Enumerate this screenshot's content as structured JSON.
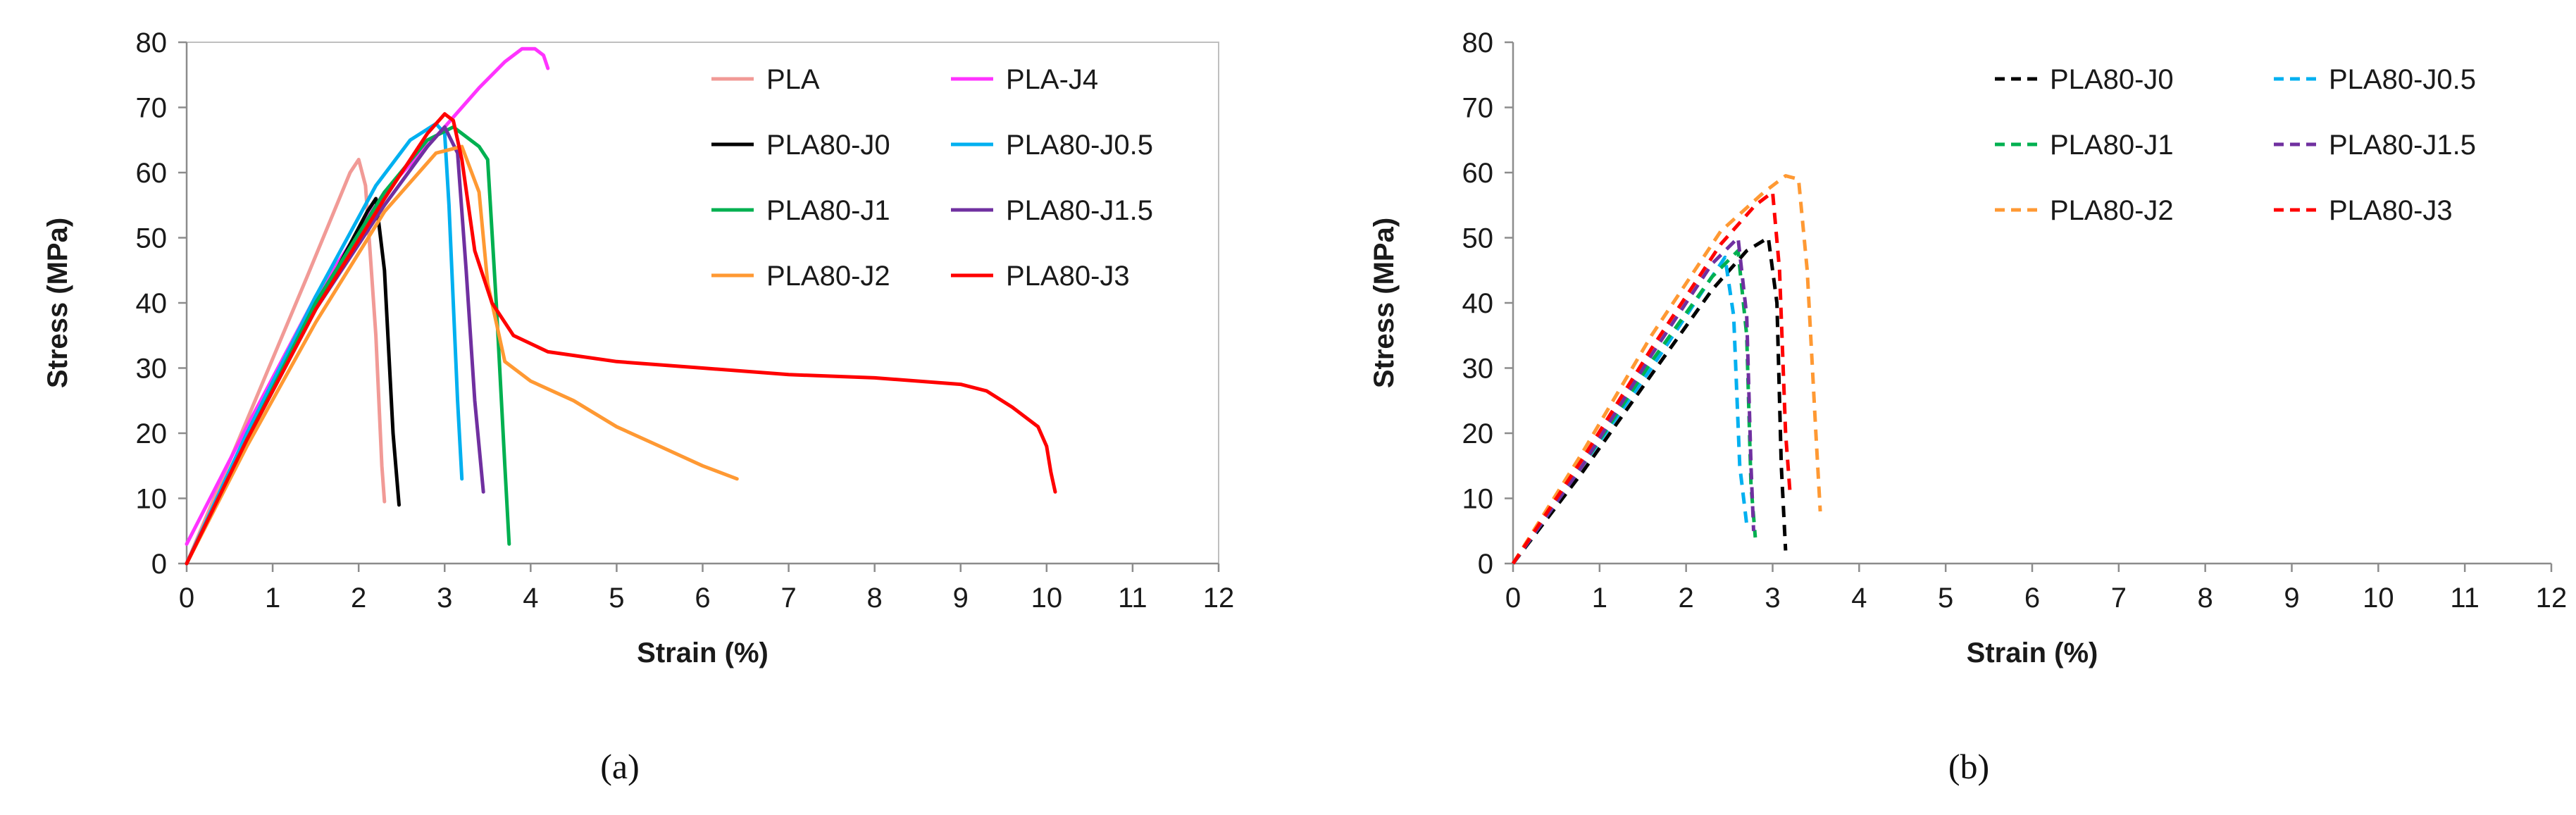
{
  "chart_data": [
    {
      "type": "line",
      "panel": "(a)",
      "xlabel": "Strain (%)",
      "ylabel": "Stress (MPa)",
      "xlim": [
        0,
        12
      ],
      "ylim": [
        0,
        80
      ],
      "xticks": [
        "0",
        "1",
        "2",
        "3",
        "4",
        "5",
        "6",
        "7",
        "8",
        "9",
        "10",
        "11",
        "12"
      ],
      "yticks": [
        "0",
        "10",
        "20",
        "30",
        "40",
        "50",
        "60",
        "70",
        "80"
      ],
      "legend_position": "top-right",
      "series": [
        {
          "name": "PLA",
          "color": "#f19a96",
          "dash": "solid",
          "x": [
            0.0,
            0.7,
            1.4,
            1.9,
            2.0,
            2.08,
            2.2,
            2.27,
            2.3
          ],
          "y": [
            0.0,
            22.0,
            44.0,
            60.0,
            62.0,
            58.0,
            35.0,
            15.0,
            9.5
          ]
        },
        {
          "name": "PLA-J4",
          "color": "#ff33ff",
          "dash": "solid",
          "x": [
            0.0,
            0.7,
            1.5,
            2.3,
            3.0,
            3.4,
            3.7,
            3.9,
            4.05,
            4.15,
            4.2
          ],
          "y": [
            3.0,
            21.0,
            41.0,
            57.0,
            67.0,
            73.0,
            77.0,
            79.0,
            79.0,
            78.0,
            76.0
          ]
        },
        {
          "name": "PLA80-J0",
          "color": "#000000",
          "dash": "solid",
          "x": [
            0.0,
            0.7,
            1.5,
            2.1,
            2.2,
            2.3,
            2.4,
            2.47
          ],
          "y": [
            0.0,
            19.0,
            39.0,
            54.0,
            56.0,
            45.0,
            20.0,
            9.0
          ]
        },
        {
          "name": "PLA80-J0.5",
          "color": "#00b0f0",
          "dash": "solid",
          "x": [
            0.0,
            0.7,
            1.5,
            2.2,
            2.6,
            2.9,
            3.0,
            3.05,
            3.1,
            3.15,
            3.2
          ],
          "y": [
            0.0,
            20.0,
            41.0,
            58.0,
            65.0,
            67.5,
            66.0,
            55.0,
            40.0,
            25.0,
            13.0
          ]
        },
        {
          "name": "PLA80-J1",
          "color": "#00b050",
          "dash": "solid",
          "x": [
            0.0,
            0.7,
            1.5,
            2.3,
            2.8,
            3.1,
            3.4,
            3.5,
            3.6,
            3.7,
            3.75
          ],
          "y": [
            0.0,
            19.0,
            40.0,
            57.0,
            65.0,
            67.0,
            64.0,
            62.0,
            40.0,
            15.0,
            3.0
          ]
        },
        {
          "name": "PLA80-J1.5",
          "color": "#7030a0",
          "dash": "solid",
          "x": [
            0.0,
            0.7,
            1.5,
            2.3,
            2.8,
            3.0,
            3.15,
            3.25,
            3.35,
            3.45
          ],
          "y": [
            0.0,
            19.0,
            39.0,
            55.0,
            64.0,
            67.0,
            63.0,
            45.0,
            25.0,
            11.0
          ]
        },
        {
          "name": "PLA80-J2",
          "color": "#ff9933",
          "dash": "solid",
          "x": [
            0.0,
            0.7,
            1.5,
            2.3,
            2.9,
            3.2,
            3.4,
            3.5,
            3.7,
            4.0,
            4.5,
            5.0,
            5.5,
            6.0,
            6.4
          ],
          "y": [
            0.0,
            18.0,
            37.0,
            54.0,
            63.0,
            64.0,
            57.0,
            43.0,
            31.0,
            28.0,
            25.0,
            21.0,
            18.0,
            15.0,
            13.0
          ]
        },
        {
          "name": "PLA80-J3",
          "color": "#ff0000",
          "dash": "solid",
          "x": [
            0.0,
            0.7,
            1.5,
            2.3,
            2.8,
            3.0,
            3.1,
            3.2,
            3.35,
            3.55,
            3.8,
            4.2,
            5.0,
            6.0,
            7.0,
            8.0,
            9.0,
            9.3,
            9.6,
            9.9,
            10.0,
            10.05,
            10.1
          ],
          "y": [
            0.0,
            19.0,
            39.0,
            56.0,
            66.0,
            69.0,
            68.0,
            62.0,
            48.0,
            40.0,
            35.0,
            32.5,
            31.0,
            30.0,
            29.0,
            28.5,
            27.5,
            26.5,
            24.0,
            21.0,
            18.0,
            14.0,
            11.0
          ]
        }
      ]
    },
    {
      "type": "line",
      "panel": "(b)",
      "xlabel": "Strain (%)",
      "ylabel": "Stress (MPa)",
      "xlim": [
        0,
        12
      ],
      "ylim": [
        0,
        80
      ],
      "xticks": [
        "0",
        "1",
        "2",
        "3",
        "4",
        "5",
        "6",
        "7",
        "8",
        "9",
        "10",
        "11",
        "12"
      ],
      "yticks": [
        "0",
        "10",
        "20",
        "30",
        "40",
        "50",
        "60",
        "70",
        "80"
      ],
      "legend_position": "top-right",
      "series": [
        {
          "name": "PLA80-J0",
          "color": "#000000",
          "dash": "dashed",
          "x": [
            0.0,
            0.8,
            1.6,
            2.3,
            2.7,
            2.95,
            3.05,
            3.1,
            3.15
          ],
          "y": [
            0.0,
            14.0,
            29.0,
            42.0,
            48.0,
            50.0,
            40.0,
            15.0,
            2.0
          ]
        },
        {
          "name": "PLA80-J0.5",
          "color": "#00b0f0",
          "dash": "dashed",
          "x": [
            0.0,
            0.8,
            1.6,
            2.2,
            2.45,
            2.55,
            2.62,
            2.7
          ],
          "y": [
            0.0,
            15.0,
            30.0,
            42.0,
            47.0,
            38.0,
            15.0,
            6.0
          ]
        },
        {
          "name": "PLA80-J1",
          "color": "#00b050",
          "dash": "dashed",
          "x": [
            0.0,
            0.8,
            1.6,
            2.3,
            2.6,
            2.7,
            2.75,
            2.8
          ],
          "y": [
            0.0,
            15.0,
            31.0,
            44.0,
            48.0,
            35.0,
            12.0,
            4.0
          ]
        },
        {
          "name": "PLA80-J1.5",
          "color": "#7030a0",
          "dash": "dashed",
          "x": [
            0.0,
            0.8,
            1.6,
            2.3,
            2.6,
            2.7,
            2.75,
            2.78
          ],
          "y": [
            0.0,
            15.0,
            32.0,
            46.0,
            50.0,
            38.0,
            15.0,
            5.0
          ]
        },
        {
          "name": "PLA80-J2",
          "color": "#ff9933",
          "dash": "dashed",
          "x": [
            0.0,
            0.8,
            1.6,
            2.4,
            2.9,
            3.15,
            3.3,
            3.4,
            3.5,
            3.55
          ],
          "y": [
            0.0,
            17.0,
            35.0,
            51.0,
            57.0,
            59.5,
            59.0,
            45.0,
            20.0,
            8.0
          ]
        },
        {
          "name": "PLA80-J3",
          "color": "#ff0000",
          "dash": "dashed",
          "x": [
            0.0,
            0.8,
            1.6,
            2.4,
            2.8,
            3.0,
            3.08,
            3.15,
            3.2
          ],
          "y": [
            0.0,
            16.0,
            33.0,
            49.0,
            55.0,
            57.0,
            45.0,
            20.0,
            11.0
          ]
        }
      ]
    }
  ]
}
